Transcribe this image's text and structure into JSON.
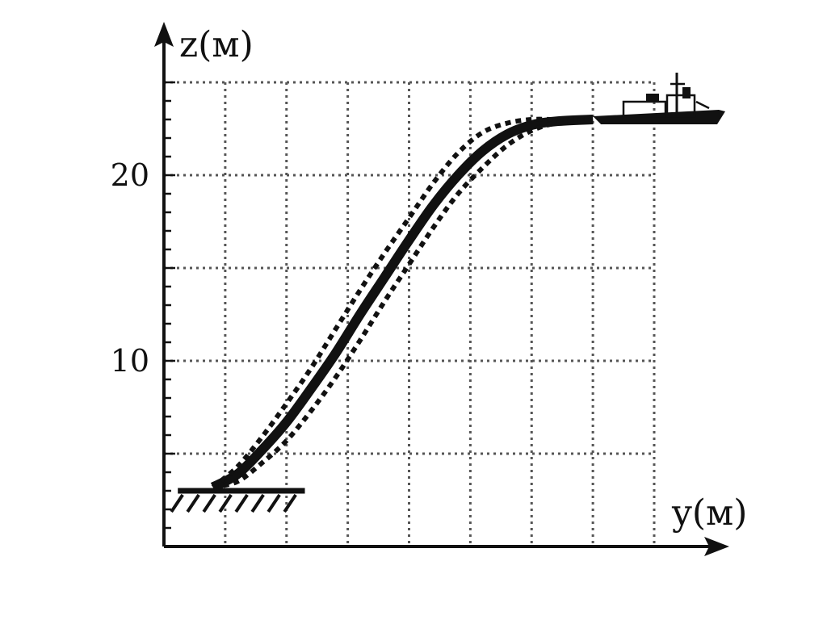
{
  "chart_data": {
    "type": "line",
    "title": "",
    "xlabel": "y(м)",
    "ylabel": "z(м)",
    "xlim": [
      0,
      40
    ],
    "ylim": [
      0,
      25
    ],
    "x_grid_step": 5,
    "y_grid_step": 5,
    "y_ticks": [
      {
        "value": 10,
        "label": "10"
      },
      {
        "value": 20,
        "label": "20"
      }
    ],
    "grid": true,
    "colors": {
      "ink": "#111111",
      "grid": "#555555",
      "background": "#ffffff"
    },
    "series": [
      {
        "style": "solid",
        "x": [
          4,
          6,
          8,
          10,
          12,
          14,
          16,
          18,
          20,
          22,
          24,
          26,
          28,
          30,
          32,
          35
        ],
        "y": [
          3.2,
          3.9,
          5.2,
          6.7,
          8.5,
          10.4,
          12.5,
          14.5,
          16.5,
          18.4,
          20.0,
          21.3,
          22.2,
          22.7,
          22.9,
          23.0
        ]
      },
      {
        "style": "dotted",
        "x": [
          4,
          6,
          8,
          10,
          12,
          14,
          16,
          18,
          20,
          22,
          24,
          26,
          28,
          30,
          32,
          35
        ],
        "y": [
          3.2,
          4.3,
          5.9,
          7.7,
          9.6,
          11.7,
          13.8,
          15.8,
          17.7,
          19.6,
          21.2,
          22.3,
          22.8,
          23.0,
          23.0,
          23.0
        ]
      },
      {
        "style": "dotted",
        "x": [
          4,
          6,
          8,
          10,
          12,
          14,
          16,
          18,
          20,
          22,
          24,
          26,
          28,
          30,
          32,
          35
        ],
        "y": [
          3.2,
          3.5,
          4.5,
          5.7,
          7.3,
          9.1,
          11.1,
          13.2,
          15.2,
          17.2,
          19.0,
          20.4,
          21.6,
          22.4,
          22.8,
          23.0
        ]
      }
    ],
    "annotations": [
      {
        "name": "seabed",
        "x_from": 1,
        "x_to": 11.5,
        "y": 3.0
      },
      {
        "name": "ship",
        "x": 39,
        "y": 23.0
      }
    ]
  }
}
